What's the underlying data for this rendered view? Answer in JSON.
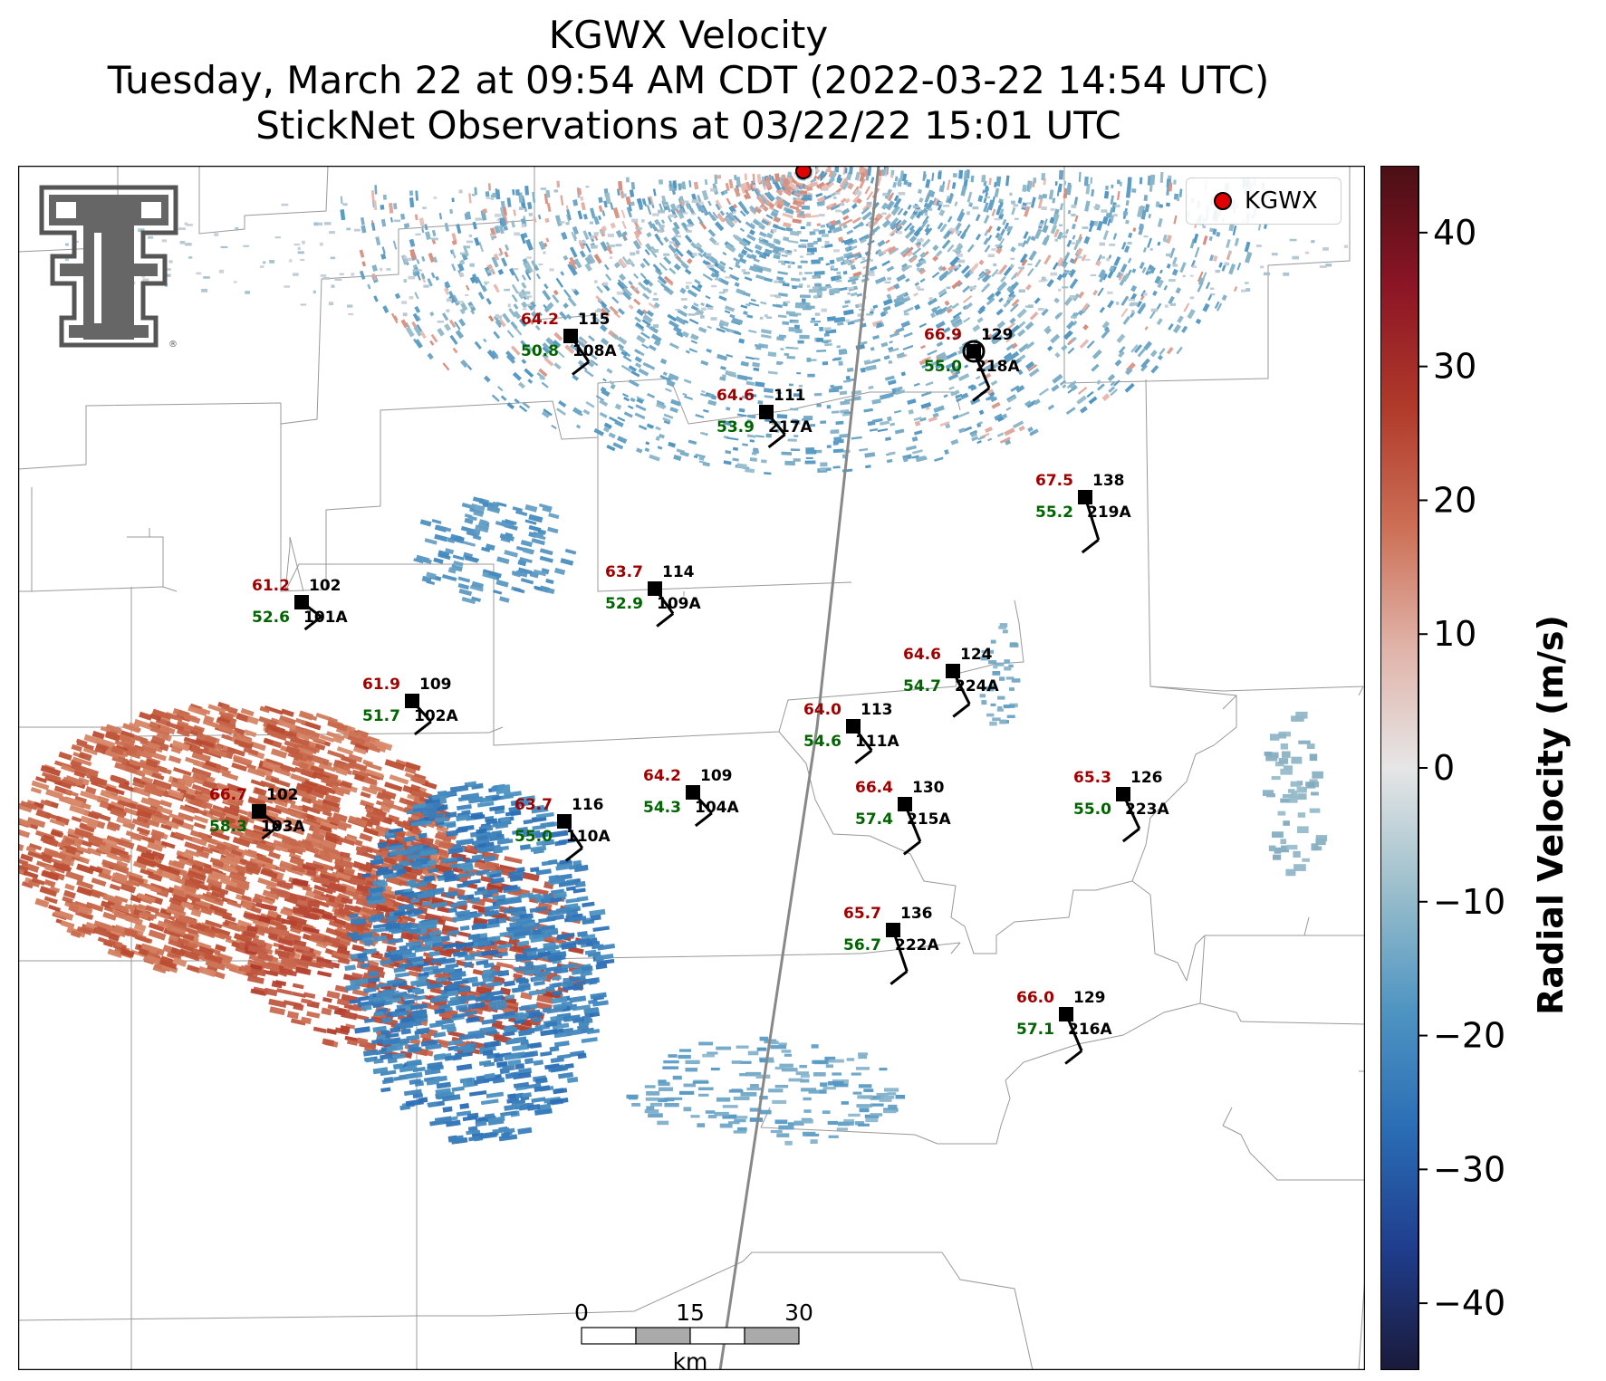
{
  "title": {
    "line1": "KGWX Velocity",
    "line2": "Tuesday, March 22 at 09:54 AM CDT (2022-03-22 14:54 UTC)",
    "line3": "StickNet Observations at 03/22/22 15:01 UTC"
  },
  "legend": {
    "label": "KGWX",
    "color": "#e00000"
  },
  "colorbar": {
    "label": "Radial Velocity (m/s)",
    "range": [
      -45,
      45
    ],
    "ticks": [
      40,
      30,
      20,
      10,
      0,
      -10,
      -20,
      -30,
      -40
    ],
    "tick_labels": [
      "40",
      "30",
      "20",
      "10",
      "0",
      "−10",
      "−20",
      "−30",
      "−40"
    ],
    "colors": [
      "#1a1a3a",
      "#1f3d8c",
      "#2a6db5",
      "#4f95c2",
      "#9bbfcc",
      "#e6e6e6",
      "#e0b3a8",
      "#cc6f55",
      "#b03a2a",
      "#8c1525",
      "#4a0f15"
    ]
  },
  "scale_bar": {
    "labels": [
      "0",
      "15",
      "30"
    ],
    "unit": "km"
  },
  "logo": {
    "name": "texas-tech-double-t-logo",
    "registered": "®"
  },
  "radar_color": "#e00000",
  "temp_color": "#a00000",
  "dew_color": "#006400",
  "stations": [
    {
      "id": "108A",
      "temp": "64.2",
      "dew": "50.8",
      "dir": "115"
    },
    {
      "id": "218A",
      "temp": "66.9",
      "dew": "55.0",
      "dir": "129"
    },
    {
      "id": "217A",
      "temp": "64.6",
      "dew": "53.9",
      "dir": "111"
    },
    {
      "id": "219A",
      "temp": "67.5",
      "dew": "55.2",
      "dir": "138"
    },
    {
      "id": "101A",
      "temp": "61.2",
      "dew": "52.6",
      "dir": "102"
    },
    {
      "id": "109A",
      "temp": "63.7",
      "dew": "52.9",
      "dir": "114"
    },
    {
      "id": "224A",
      "temp": "64.6",
      "dew": "54.7",
      "dir": "124"
    },
    {
      "id": "102A",
      "temp": "61.9",
      "dew": "51.7",
      "dir": "109"
    },
    {
      "id": "111A",
      "temp": "64.0",
      "dew": "54.6",
      "dir": "113"
    },
    {
      "id": "215A",
      "temp": "66.4",
      "dew": "57.4",
      "dir": "130"
    },
    {
      "id": "223A",
      "temp": "65.3",
      "dew": "55.0",
      "dir": "126"
    },
    {
      "id": "104A",
      "temp": "64.2",
      "dew": "54.3",
      "dir": "109"
    },
    {
      "id": "103A",
      "temp": "66.7",
      "dew": "58.3",
      "dir": "102"
    },
    {
      "id": "110A",
      "temp": "63.7",
      "dew": "55.0",
      "dir": "116"
    },
    {
      "id": "222A",
      "temp": "65.7",
      "dew": "56.7",
      "dir": "136"
    },
    {
      "id": "216A",
      "temp": "66.0",
      "dew": "57.1",
      "dir": "129"
    }
  ]
}
